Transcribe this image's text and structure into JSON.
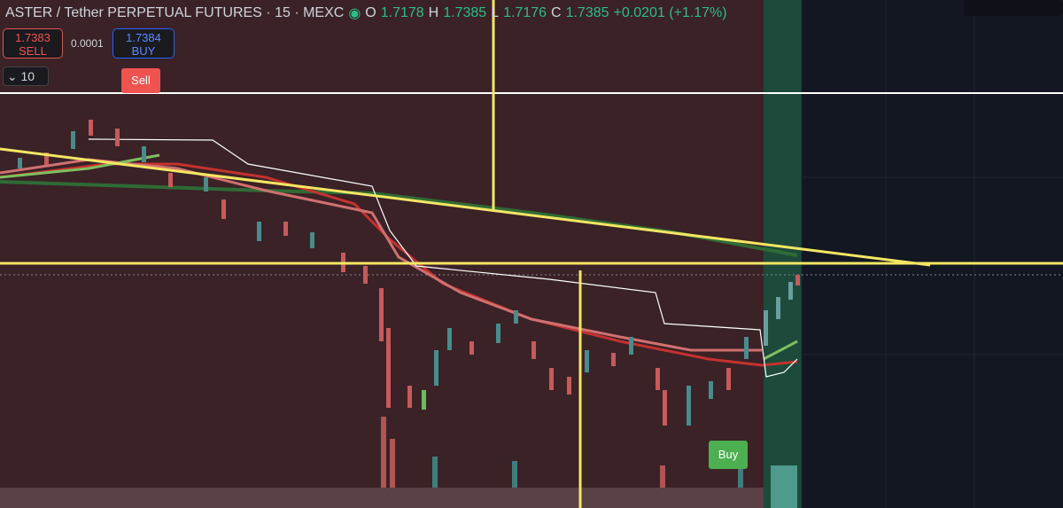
{
  "header": {
    "symbol": "ASTER / Tether PERPETUAL FUTURES · 15 · MEXC",
    "open_label": "O",
    "open": "1.7178",
    "high_label": "H",
    "high": "1.7385",
    "low_label": "L",
    "low": "1.7176",
    "close_label": "C",
    "close": "1.7385",
    "change": "+0.0201 (+1.17%)"
  },
  "order": {
    "sell_price": "1.7383",
    "sell_label": "SELL",
    "spread": "0.0001",
    "buy_price": "1.7384",
    "buy_label": "BUY"
  },
  "quantity": "10",
  "markers": {
    "sell": "Sell",
    "buy": "Buy"
  }
}
